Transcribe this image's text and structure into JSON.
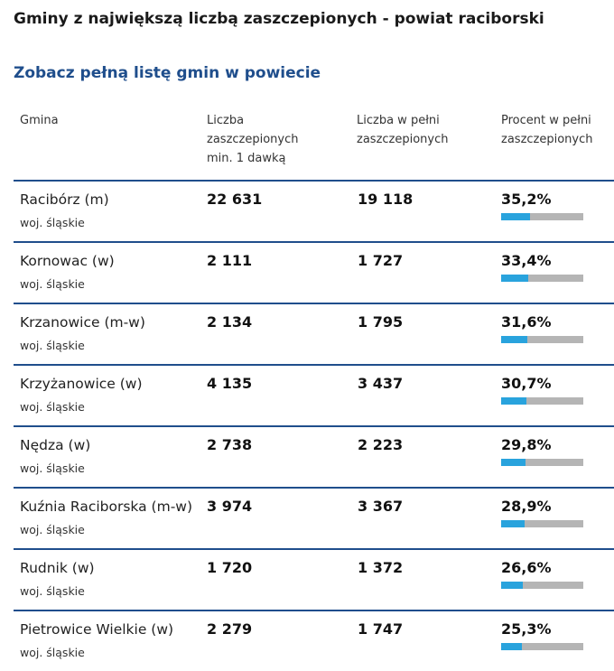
{
  "title": "Gminy z największą liczbą zaszczepionych - powiat raciborski",
  "link": "Zobacz pełną listę gmin w powiecie",
  "headers": {
    "gmina": "Gmina",
    "dose1": "Liczba zaszczepionych min. 1 dawką",
    "full": "Liczba w pełni zaszczepionych",
    "percent": "Procent w pełni zaszczepionych"
  },
  "colors": {
    "accent": "#1f4e8c",
    "bar_fill": "#29a3dd",
    "bar_bg": "#b5b5b5"
  },
  "rows": [
    {
      "name": "Racibórz (m)",
      "woj": "woj. śląskie",
      "dose1": "22 631",
      "full": "19 118",
      "percent": "35,2%",
      "fraction": 0.352
    },
    {
      "name": "Kornowac (w)",
      "woj": "woj. śląskie",
      "dose1": "2 111",
      "full": "1 727",
      "percent": "33,4%",
      "fraction": 0.334
    },
    {
      "name": "Krzanowice (m-w)",
      "woj": "woj. śląskie",
      "dose1": "2 134",
      "full": "1 795",
      "percent": "31,6%",
      "fraction": 0.316
    },
    {
      "name": "Krzyżanowice (w)",
      "woj": "woj. śląskie",
      "dose1": "4 135",
      "full": "3 437",
      "percent": "30,7%",
      "fraction": 0.307
    },
    {
      "name": "Nędza (w)",
      "woj": "woj. śląskie",
      "dose1": "2 738",
      "full": "2 223",
      "percent": "29,8%",
      "fraction": 0.298
    },
    {
      "name": "Kuźnia Raciborska (m-w)",
      "woj": "woj. śląskie",
      "dose1": "3 974",
      "full": "3 367",
      "percent": "28,9%",
      "fraction": 0.289
    },
    {
      "name": "Rudnik (w)",
      "woj": "woj. śląskie",
      "dose1": "1 720",
      "full": "1 372",
      "percent": "26,6%",
      "fraction": 0.266
    },
    {
      "name": "Pietrowice Wielkie (w)",
      "woj": "woj. śląskie",
      "dose1": "2 279",
      "full": "1 747",
      "percent": "25,3%",
      "fraction": 0.253
    }
  ]
}
